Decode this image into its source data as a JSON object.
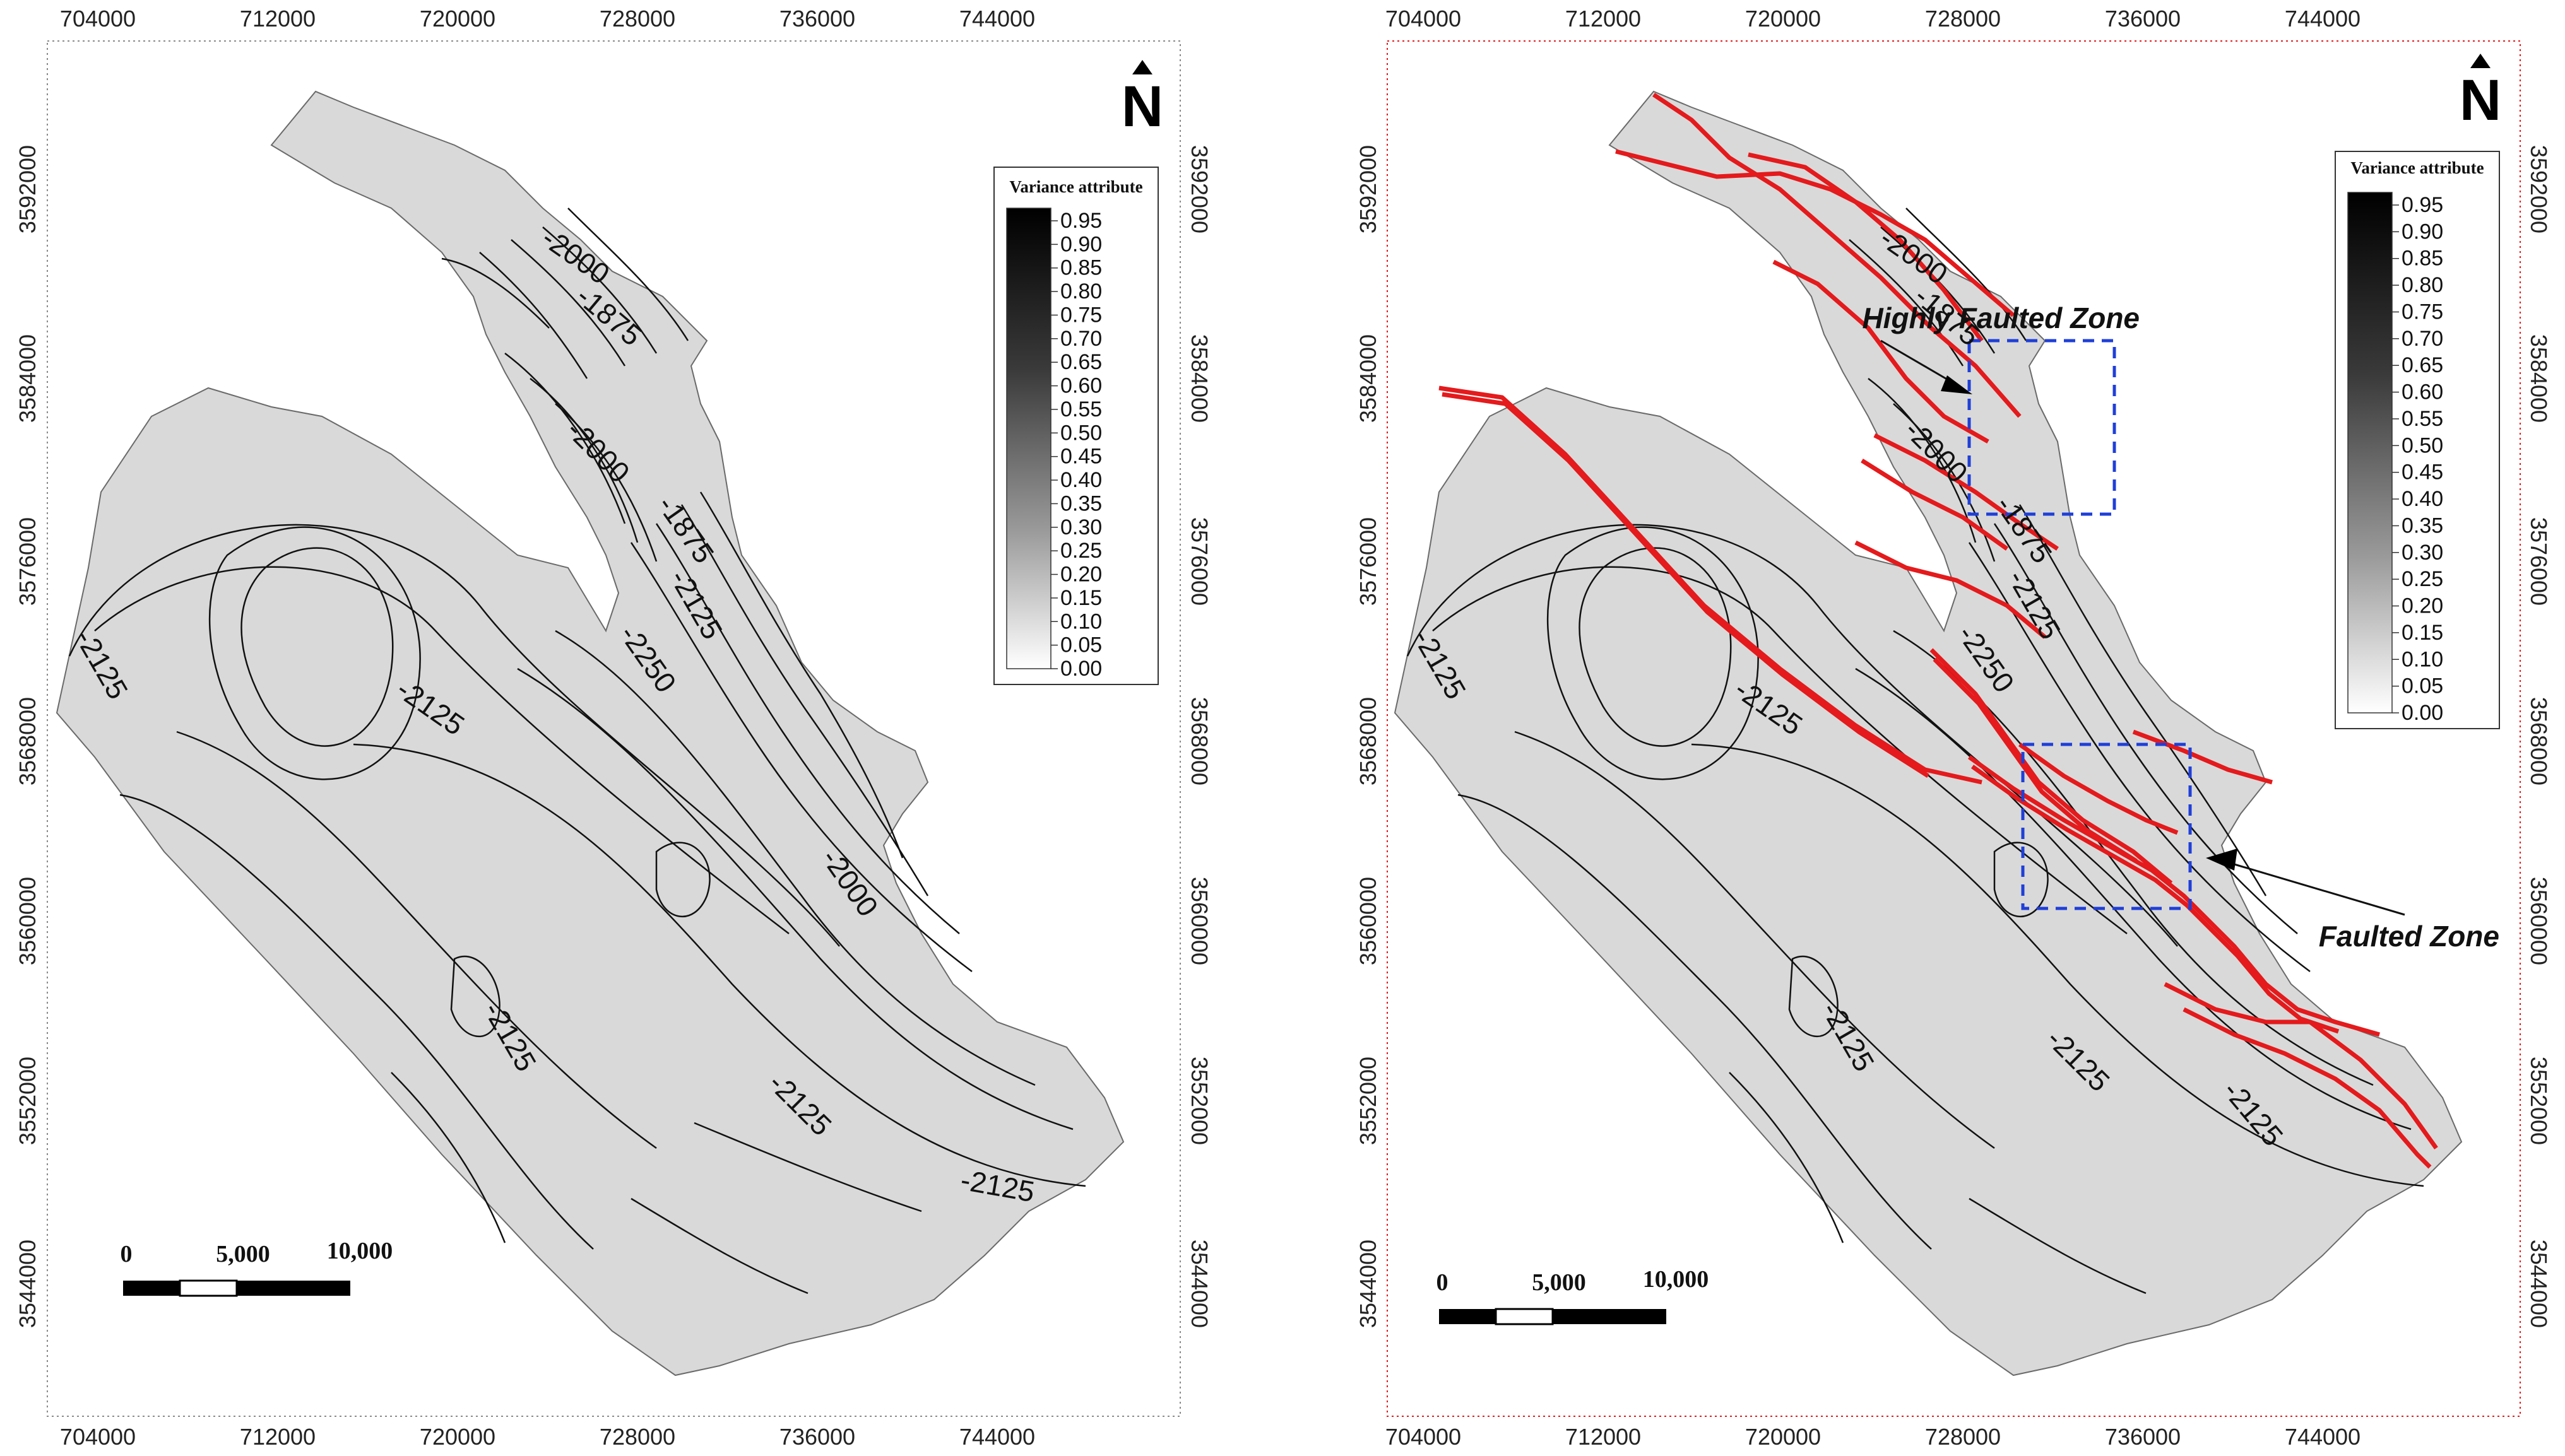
{
  "maps": [
    {
      "id": "left",
      "x_ticks": [
        "704000",
        "712000",
        "720000",
        "728000",
        "736000",
        "744000"
      ],
      "y_ticks": [
        "3592000",
        "3584000",
        "3576000",
        "3568000",
        "3560000",
        "3552000",
        "3544000"
      ],
      "contour_labels": [
        "-2000",
        "-1875",
        "-2000",
        "-1875",
        "-2125",
        "-2250",
        "-2125",
        "-2125",
        "-2000",
        "-2125",
        "-2125",
        "-2125"
      ],
      "legend_title": "Variance attribute",
      "legend_values": [
        "0.95",
        "0.90",
        "0.85",
        "0.80",
        "0.75",
        "0.70",
        "0.65",
        "0.60",
        "0.55",
        "0.50",
        "0.45",
        "0.40",
        "0.35",
        "0.30",
        "0.25",
        "0.20",
        "0.15",
        "0.10",
        "0.05",
        "0.00"
      ],
      "north_label": "N",
      "scale_labels": [
        "0",
        "5,000",
        "10,000"
      ],
      "colors": {
        "frame": "#8a8a8a",
        "fault": "#e41a1c",
        "surface": "#d9d9d9"
      }
    },
    {
      "id": "right",
      "x_ticks": [
        "704000",
        "712000",
        "720000",
        "728000",
        "736000",
        "744000"
      ],
      "y_ticks": [
        "3592000",
        "3584000",
        "3576000",
        "3568000",
        "3560000",
        "3552000",
        "3544000"
      ],
      "contour_labels": [
        "-2000",
        "-1875",
        "-2000",
        "-1875",
        "-2125",
        "-2250",
        "-2125",
        "-2125",
        "-2125",
        "-2125",
        "-2125"
      ],
      "legend_title": "Variance attribute",
      "legend_values": [
        "0.95",
        "0.90",
        "0.85",
        "0.80",
        "0.75",
        "0.70",
        "0.65",
        "0.60",
        "0.55",
        "0.50",
        "0.45",
        "0.40",
        "0.35",
        "0.30",
        "0.25",
        "0.20",
        "0.15",
        "0.10",
        "0.05",
        "0.00"
      ],
      "north_label": "N",
      "scale_labels": [
        "0",
        "5,000",
        "10,000"
      ],
      "annotations": [
        "Highly Faulted Zone",
        "Faulted Zone"
      ],
      "colors": {
        "frame": "#e41a1c",
        "fault": "#e41a1c",
        "zone_box": "#1f3fd8",
        "surface": "#d9d9d9"
      }
    }
  ]
}
